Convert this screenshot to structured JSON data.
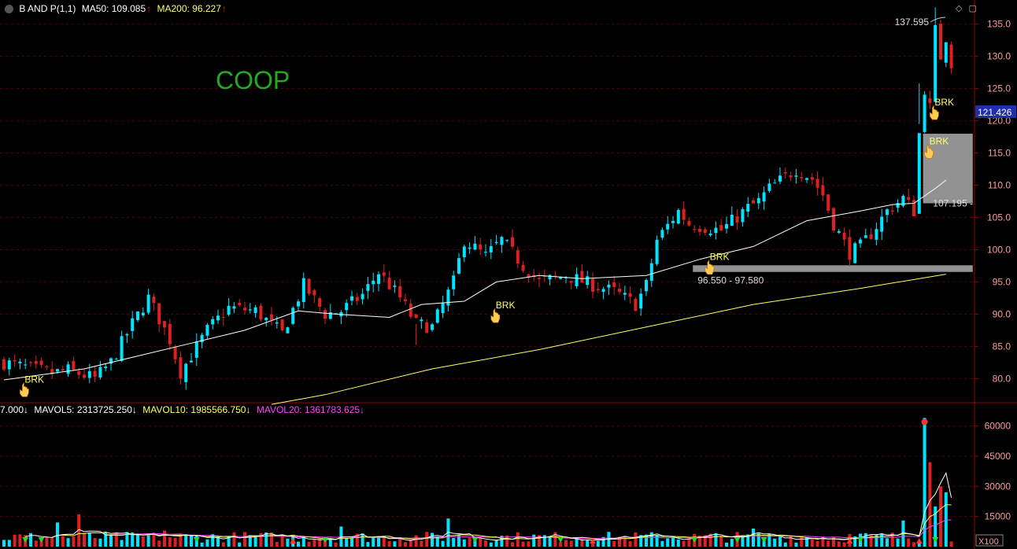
{
  "header": {
    "symbol": "B AND P(1,1)",
    "ma50_label": "MA50: 109.085",
    "ma200_label": "MA200: 96.227",
    "arrow_up": "↑"
  },
  "ticker_label": "COOP",
  "colors": {
    "background": "#000000",
    "up": "#00e5ff",
    "down": "#e02020",
    "ma50": "#ffffff",
    "ma200": "#ffff66",
    "grid": "#5a0000",
    "axis": "#990000",
    "zone": "#9a9a9a",
    "brk": "#ffff66",
    "ticker": "#22aa22",
    "price_tag": "#1f2fb0",
    "mavol20": "#ff44ff"
  },
  "volume_header": {
    "vol_value": "7.000↓",
    "mavol5": "MAVOL5: 2313725.250↓",
    "mavol10": "MAVOL10: 1985566.750↓",
    "mavol20": "MAVOL20: 1361783.625↓"
  },
  "annotations": {
    "peak_label": "137.595",
    "zone_label": "96.550 - 97.580",
    "level_label": "107.195 -",
    "current_price": "121.426",
    "brk_text": "BRK",
    "vol_scale": "X100"
  },
  "chart_data": [
    {
      "type": "candlestick",
      "name": "price",
      "y_ticks": [
        80,
        85,
        90,
        95,
        100,
        105,
        110,
        115,
        120,
        125,
        130,
        135
      ],
      "ylim": [
        76.5,
        138.5
      ],
      "anchors": [
        [
          0,
          82.5
        ],
        [
          9,
          80.8
        ],
        [
          12,
          81.3
        ],
        [
          17,
          80.0
        ],
        [
          20,
          82.5
        ],
        [
          24,
          88.5
        ],
        [
          27,
          92.5
        ],
        [
          31,
          86
        ],
        [
          33,
          81
        ],
        [
          38,
          87.5
        ],
        [
          42,
          91
        ],
        [
          47,
          90.5
        ],
        [
          52,
          87
        ],
        [
          56,
          94.5
        ],
        [
          60,
          90
        ],
        [
          63,
          90.5
        ],
        [
          67,
          93
        ],
        [
          70,
          96.5
        ],
        [
          74,
          92.5
        ],
        [
          77,
          88.5
        ],
        [
          80,
          88
        ],
        [
          84,
          95
        ],
        [
          86,
          101.5
        ],
        [
          90,
          99
        ],
        [
          93,
          101.5
        ],
        [
          97,
          97.5
        ],
        [
          100,
          95
        ],
        [
          105,
          96
        ],
        [
          110,
          94.5
        ],
        [
          114,
          93.5
        ],
        [
          118,
          91.5
        ],
        [
          120,
          94.5
        ],
        [
          122,
          101.5
        ],
        [
          126,
          106
        ],
        [
          128,
          104
        ],
        [
          134,
          103
        ],
        [
          139,
          106.5
        ],
        [
          141,
          107.5
        ],
        [
          143,
          109.5
        ],
        [
          148,
          112.5
        ],
        [
          151,
          111
        ],
        [
          153,
          108.5
        ],
        [
          155,
          104
        ],
        [
          158,
          99.5
        ],
        [
          160,
          100.5
        ],
        [
          162,
          102.5
        ],
        [
          165,
          106
        ],
        [
          168,
          108
        ],
        [
          170,
          106
        ],
        [
          171,
          118
        ],
        [
          172,
          125
        ],
        [
          173,
          122
        ],
        [
          174,
          134
        ],
        [
          175,
          130
        ],
        [
          176,
          133
        ],
        [
          177,
          129
        ]
      ],
      "events": [
        {
          "i": 77,
          "high": 85.2
        },
        {
          "i": 171,
          "high": 125.8,
          "low": 119.5
        },
        {
          "i": 174,
          "high": 137.6,
          "low": 126.5
        }
      ],
      "ma50_points": [
        [
          0,
          79.8
        ],
        [
          15,
          81.5
        ],
        [
          25,
          83.5
        ],
        [
          35,
          85.5
        ],
        [
          45,
          87.5
        ],
        [
          55,
          90.5
        ],
        [
          62,
          90
        ],
        [
          72,
          89.5
        ],
        [
          78,
          91.5
        ],
        [
          86,
          92
        ],
        [
          92,
          95
        ],
        [
          100,
          96
        ],
        [
          108,
          95.5
        ],
        [
          120,
          96
        ],
        [
          130,
          98.5
        ],
        [
          140,
          100.5
        ],
        [
          150,
          104.5
        ],
        [
          160,
          106
        ],
        [
          166,
          107
        ],
        [
          170,
          107.2
        ],
        [
          174,
          109.5
        ],
        [
          176,
          110.8
        ]
      ],
      "ma200_points": [
        [
          50,
          76
        ],
        [
          60,
          77.5
        ],
        [
          80,
          81.5
        ],
        [
          100,
          84.5
        ],
        [
          120,
          88
        ],
        [
          140,
          91.5
        ],
        [
          160,
          94
        ],
        [
          176,
          96.2
        ]
      ],
      "zones": [
        {
          "from_i": 129,
          "to_i": 181,
          "low": 96.55,
          "high": 97.58
        },
        {
          "from_i": 172,
          "to_i": 181,
          "low": 107.2,
          "high": 118
        }
      ],
      "brk_markers": [
        {
          "i": 3,
          "price": 79.5
        },
        {
          "i": 91,
          "price": 91
        },
        {
          "i": 131,
          "price": 98.5
        },
        {
          "i": 172,
          "price": 116.5
        },
        {
          "i": 173,
          "price": 122.5
        }
      ]
    },
    {
      "type": "bar",
      "name": "volume",
      "y_ticks": [
        15000,
        30000,
        45000,
        60000
      ],
      "ylim": [
        0,
        70000
      ],
      "spikes": [
        {
          "i": 10,
          "value": 12000
        },
        {
          "i": 14,
          "value": 16000
        },
        {
          "i": 30,
          "value": 8000
        },
        {
          "i": 63,
          "value": 10000
        },
        {
          "i": 83,
          "value": 14000
        },
        {
          "i": 140,
          "value": 9000
        },
        {
          "i": 168,
          "value": 13000
        },
        {
          "i": 172,
          "value": 64000
        },
        {
          "i": 173,
          "value": 42000
        },
        {
          "i": 174,
          "value": 20000
        },
        {
          "i": 175,
          "value": 30000
        },
        {
          "i": 176,
          "value": 27000
        }
      ]
    }
  ]
}
